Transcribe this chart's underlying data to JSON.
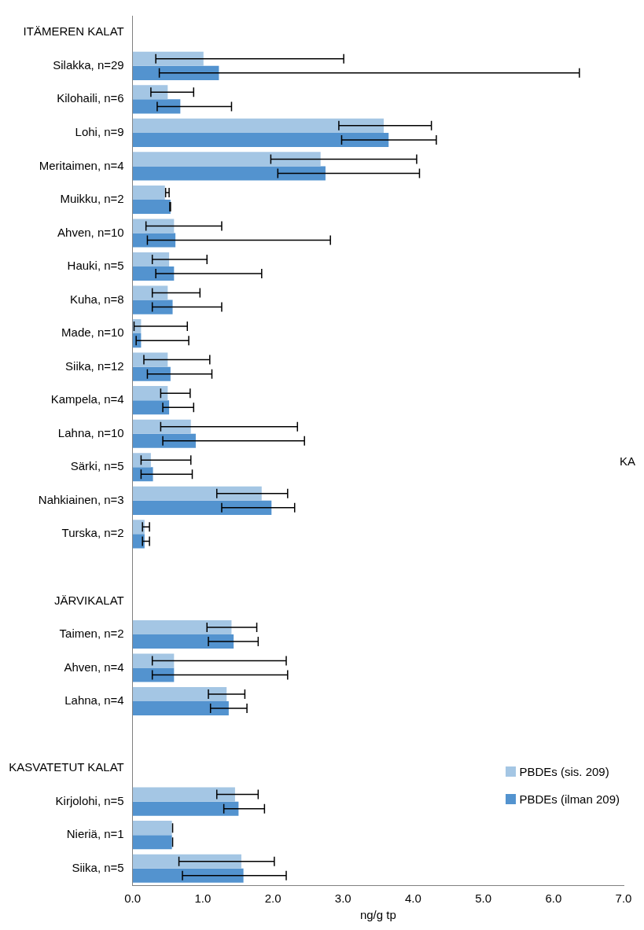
{
  "chart_data": {
    "type": "bar",
    "orientation": "horizontal",
    "categories": [
      "ITÄMEREN KALAT",
      "Silakka, n=29",
      "Kilohaili, n=6",
      "Lohi, n=9",
      "Meritaimen, n=4",
      "Muikku, n=2",
      "Ahven, n=10",
      "Hauki, n=5",
      "Kuha, n=8",
      "Made, n=10",
      "Siika, n=12",
      "Kampela, n=4",
      "Lahna, n=10",
      "Särki, n=5",
      "Nahkiainen, n=3",
      "Turska, n=2",
      null,
      "JÄRVIKALAT",
      "Taimen, n=2",
      "Ahven, n=4",
      "Lahna, n=4",
      null,
      "KASVATETUT KALAT",
      "Kirjolohi, n=5",
      "Nieriä, n=1",
      "Siika, n=5"
    ],
    "series": [
      {
        "name": "PBDEs (sis. 209)",
        "color": "#a4c6e4",
        "values": [
          null,
          1.01,
          0.5,
          3.58,
          2.68,
          0.46,
          0.59,
          0.52,
          0.5,
          0.12,
          0.5,
          0.5,
          0.83,
          0.26,
          1.84,
          0.17,
          null,
          null,
          1.41,
          0.59,
          1.34,
          null,
          null,
          1.46,
          0.56,
          1.55
        ],
        "errors": [
          null,
          [
            0.33,
            3.01
          ],
          [
            0.26,
            0.87
          ],
          [
            2.94,
            4.26
          ],
          [
            1.97,
            4.05
          ],
          [
            0.47,
            0.52
          ],
          [
            0.19,
            1.27
          ],
          [
            0.28,
            1.06
          ],
          [
            0.28,
            0.96
          ],
          [
            0.02,
            0.78
          ],
          [
            0.16,
            1.1
          ],
          [
            0.4,
            0.82
          ],
          [
            0.4,
            2.35
          ],
          [
            0.12,
            0.83
          ],
          [
            1.2,
            2.21
          ],
          [
            0.14,
            0.24
          ],
          null,
          null,
          [
            1.06,
            1.77
          ],
          [
            0.28,
            2.19
          ],
          [
            1.08,
            1.6
          ],
          null,
          null,
          [
            1.2,
            1.79
          ],
          [
            0.57,
            0.57
          ],
          [
            0.66,
            2.02
          ]
        ]
      },
      {
        "name": "PBDEs (ilman 209)",
        "color": "#5393cf",
        "values": [
          null,
          1.23,
          0.68,
          3.65,
          2.75,
          0.54,
          0.61,
          0.59,
          0.57,
          0.12,
          0.54,
          0.52,
          0.9,
          0.29,
          1.98,
          0.17,
          null,
          null,
          1.44,
          0.59,
          1.37,
          null,
          null,
          1.51,
          0.56,
          1.58
        ],
        "errors": [
          null,
          [
            0.38,
            6.37
          ],
          [
            0.35,
            1.41
          ],
          [
            2.98,
            4.33
          ],
          [
            2.07,
            4.09
          ],
          [
            0.53,
            0.54
          ],
          [
            0.21,
            2.82
          ],
          [
            0.33,
            1.84
          ],
          [
            0.28,
            1.27
          ],
          [
            0.05,
            0.8
          ],
          [
            0.21,
            1.13
          ],
          [
            0.43,
            0.87
          ],
          [
            0.43,
            2.45
          ],
          [
            0.12,
            0.85
          ],
          [
            1.27,
            2.31
          ],
          [
            0.14,
            0.24
          ],
          null,
          null,
          [
            1.08,
            1.79
          ],
          [
            0.28,
            2.21
          ],
          [
            1.11,
            1.63
          ],
          null,
          null,
          [
            1.3,
            1.88
          ],
          [
            0.57,
            0.57
          ],
          [
            0.71,
            2.19
          ]
        ]
      }
    ],
    "xlabel": "ng/g tp",
    "xlim": [
      0,
      7
    ],
    "xticks": [
      {
        "value": 0,
        "label": "0.0"
      },
      {
        "value": 1,
        "label": "1.0"
      },
      {
        "value": 2,
        "label": "2.0"
      },
      {
        "value": 3,
        "label": "3.0"
      },
      {
        "value": 4,
        "label": "4.0"
      },
      {
        "value": 5,
        "label": "5.0"
      },
      {
        "value": 6,
        "label": "6.0"
      },
      {
        "value": 7,
        "label": "7.0"
      }
    ],
    "grid": false,
    "legend": "bottom right",
    "annotations": [
      "KA"
    ]
  }
}
